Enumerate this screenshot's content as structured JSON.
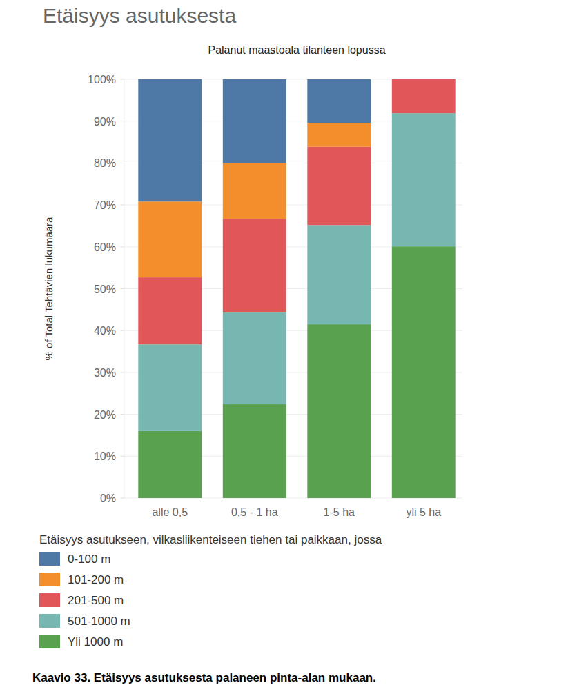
{
  "chart_data": {
    "type": "bar",
    "title": "Etäisyys asutuksesta",
    "subtitle": "Palanut maastoala tilanteen lopussa",
    "ylabel": "% of Total Tehtävien lukumäärä",
    "legend_title": "Etäisyys asutukseen, vilkasliikenteiseen tiehen tai paikkaan, jossa",
    "caption": "Kaavio 33. Etäisyys asutuksesta palaneen pinta-alan mukaan.",
    "categories": [
      "alle 0,5",
      "0,5 - 1 ha",
      "1-5 ha",
      "yli 5 ha"
    ],
    "series": [
      {
        "name": "0-100 m",
        "color": "#4e79a7",
        "values": [
          29.2,
          20.1,
          10.4,
          0
        ]
      },
      {
        "name": "101-200 m",
        "color": "#f28e2b",
        "values": [
          18.1,
          13.2,
          5.7,
          0
        ]
      },
      {
        "name": "201-500 m",
        "color": "#e15759",
        "values": [
          16.0,
          22.4,
          18.7,
          8.1
        ]
      },
      {
        "name": "501-1000 m",
        "color": "#76b7b2",
        "values": [
          20.7,
          21.9,
          23.7,
          31.8
        ]
      },
      {
        "name": "Yli 1000 m",
        "color": "#59a14f",
        "values": [
          16.0,
          22.4,
          41.5,
          60.1
        ]
      }
    ],
    "stacked": true,
    "grid": true,
    "legend": "bottom-left",
    "ylim": [
      0,
      100
    ],
    "yticks": [
      {
        "value": 0,
        "label": "0%"
      },
      {
        "value": 10,
        "label": "10%"
      },
      {
        "value": 20,
        "label": "20%"
      },
      {
        "value": 30,
        "label": "30%"
      },
      {
        "value": 40,
        "label": "40%"
      },
      {
        "value": 50,
        "label": "50%"
      },
      {
        "value": 60,
        "label": "60%"
      },
      {
        "value": 70,
        "label": "70%"
      },
      {
        "value": 80,
        "label": "80%"
      },
      {
        "value": 90,
        "label": "90%"
      },
      {
        "value": 100,
        "label": "100%"
      }
    ]
  }
}
